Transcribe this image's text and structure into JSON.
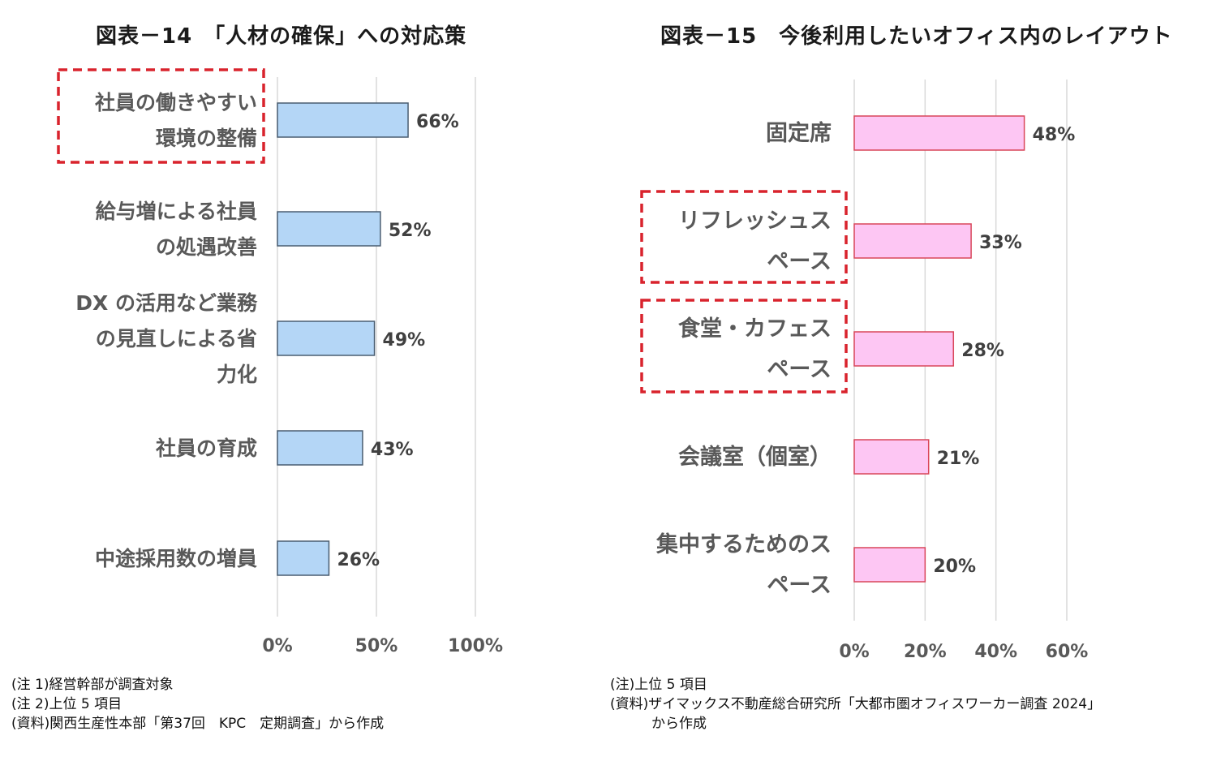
{
  "chart_data": [
    {
      "type": "bar",
      "orientation": "horizontal",
      "title": "図表－14　「人材の確保」への対応策",
      "categories": [
        [
          "社員の働きやすい",
          "環境の整備"
        ],
        [
          "給与増による社員",
          "の処遇改善"
        ],
        [
          "DX の活用など業務",
          "の見直しによる省",
          "力化"
        ],
        [
          "社員の育成"
        ],
        [
          "中途採用数の増員"
        ]
      ],
      "values": [
        66,
        52,
        49,
        43,
        26
      ],
      "value_labels": [
        "66%",
        "52%",
        "49%",
        "43%",
        "26%"
      ],
      "xlim": [
        0,
        100
      ],
      "x_ticks": [
        "0%",
        "50%",
        "100%"
      ],
      "highlighted_categories": [
        0
      ],
      "grid": true,
      "colors": {
        "bar_fill": "#b4d6f6",
        "bar_stroke": "#4a5d70",
        "highlight_box": "#d9232d"
      },
      "notes": [
        "(注 1)経営幹部が調査対象",
        "(注 2)上位 5 項目",
        "(資料)関西生産性本部「第37回　KPC　定期調査」から作成"
      ]
    },
    {
      "type": "bar",
      "orientation": "horizontal",
      "title": "図表－15　今後利用したいオフィス内のレイアウト",
      "categories": [
        [
          "固定席"
        ],
        [
          "リフレッシュス",
          "ペース"
        ],
        [
          "食堂・カフェス",
          "ペース"
        ],
        [
          "会議室（個室）"
        ],
        [
          "集中するためのス",
          "ペース"
        ]
      ],
      "values": [
        48,
        33,
        28,
        21,
        20
      ],
      "value_labels": [
        "48%",
        "33%",
        "28%",
        "21%",
        "20%"
      ],
      "xlim": [
        0,
        60
      ],
      "x_ticks": [
        "0%",
        "20%",
        "40%",
        "60%"
      ],
      "highlighted_categories": [
        1,
        2
      ],
      "grid": true,
      "colors": {
        "bar_fill": "#fdc6f3",
        "bar_stroke": "#d9465a",
        "highlight_box": "#d9232d"
      },
      "notes": [
        "(注)上位 5 項目",
        "(資料)ザイマックス不動産総合研究所「大都市圏オフィスワーカー調査 2024」",
        "　　　から作成"
      ]
    }
  ]
}
